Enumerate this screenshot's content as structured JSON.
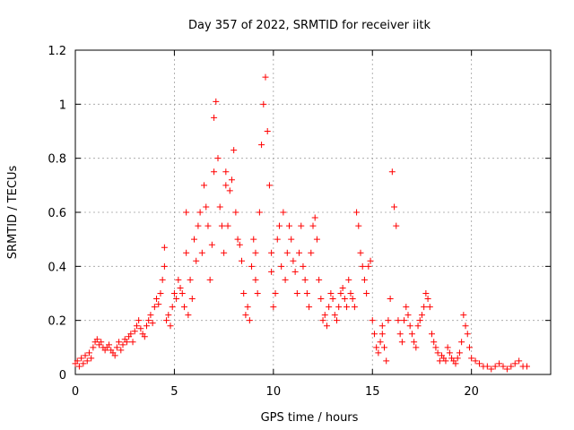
{
  "chart_data": {
    "type": "scatter",
    "title": "Day 357 of 2022, SRMTID for receiver iitk",
    "xlabel": "GPS time / hours",
    "ylabel": "SRMTID / TECUs",
    "xlim": [
      0,
      24
    ],
    "ylim": [
      0,
      1.2
    ],
    "xticks": [
      0,
      5,
      10,
      15,
      20
    ],
    "xtick_labels": [
      "0",
      "5",
      "10",
      "15",
      "20"
    ],
    "yticks": [
      0,
      0.2,
      0.4,
      0.6,
      0.8,
      1.0,
      1.2
    ],
    "ytick_labels": [
      "0",
      "0.2",
      "0.4",
      "0.6",
      "0.8",
      "1",
      "1.2"
    ],
    "grid": true,
    "marker": "plus",
    "color": "#ff0000",
    "series": [
      {
        "name": "SRMTID",
        "x": [
          0.0,
          0.1,
          0.2,
          0.3,
          0.4,
          0.5,
          0.6,
          0.7,
          0.8,
          0.9,
          1.0,
          1.1,
          1.2,
          1.3,
          1.4,
          1.5,
          1.6,
          1.7,
          1.8,
          1.9,
          2.0,
          2.1,
          2.2,
          2.3,
          2.4,
          2.5,
          2.6,
          2.7,
          2.8,
          2.9,
          3.0,
          3.1,
          3.2,
          3.3,
          3.4,
          3.5,
          3.6,
          3.7,
          3.8,
          3.9,
          4.0,
          4.1,
          4.2,
          4.3,
          4.4,
          4.5,
          4.5,
          4.6,
          4.7,
          4.8,
          4.9,
          5.0,
          5.1,
          5.2,
          5.3,
          5.4,
          5.5,
          5.6,
          5.6,
          5.7,
          5.8,
          5.9,
          6.0,
          6.1,
          6.2,
          6.3,
          6.4,
          6.5,
          6.6,
          6.7,
          6.8,
          6.9,
          7.0,
          7.0,
          7.1,
          7.2,
          7.3,
          7.4,
          7.5,
          7.6,
          7.6,
          7.7,
          7.8,
          7.9,
          8.0,
          8.1,
          8.2,
          8.3,
          8.4,
          8.5,
          8.6,
          8.7,
          8.8,
          8.9,
          9.0,
          9.1,
          9.1,
          9.2,
          9.3,
          9.4,
          9.5,
          9.6,
          9.7,
          9.8,
          9.9,
          9.9,
          10.0,
          10.1,
          10.2,
          10.3,
          10.4,
          10.5,
          10.6,
          10.7,
          10.8,
          10.9,
          11.0,
          11.1,
          11.2,
          11.3,
          11.4,
          11.5,
          11.6,
          11.7,
          11.8,
          11.9,
          12.0,
          12.1,
          12.2,
          12.3,
          12.4,
          12.5,
          12.6,
          12.7,
          12.8,
          12.9,
          13.0,
          13.1,
          13.2,
          13.3,
          13.4,
          13.5,
          13.6,
          13.7,
          13.8,
          13.9,
          14.0,
          14.1,
          14.2,
          14.3,
          14.4,
          14.5,
          14.6,
          14.7,
          14.8,
          14.9,
          15.0,
          15.1,
          15.2,
          15.3,
          15.4,
          15.5,
          15.5,
          15.6,
          15.7,
          15.8,
          15.9,
          16.0,
          16.1,
          16.2,
          16.3,
          16.4,
          16.5,
          16.6,
          16.7,
          16.8,
          16.9,
          17.0,
          17.1,
          17.2,
          17.3,
          17.4,
          17.5,
          17.6,
          17.7,
          17.8,
          17.9,
          18.0,
          18.1,
          18.2,
          18.3,
          18.4,
          18.5,
          18.6,
          18.7,
          18.8,
          18.9,
          19.0,
          19.1,
          19.2,
          19.3,
          19.4,
          19.5,
          19.6,
          19.7,
          19.8,
          19.9,
          20.0,
          20.2,
          20.4,
          20.6,
          20.8,
          21.0,
          21.2,
          21.4,
          21.6,
          21.8,
          22.0,
          22.2,
          22.4,
          22.6,
          22.8
        ],
        "y": [
          0.04,
          0.05,
          0.03,
          0.06,
          0.04,
          0.07,
          0.05,
          0.08,
          0.06,
          0.1,
          0.12,
          0.13,
          0.11,
          0.12,
          0.1,
          0.09,
          0.1,
          0.11,
          0.09,
          0.08,
          0.07,
          0.1,
          0.12,
          0.09,
          0.11,
          0.13,
          0.12,
          0.14,
          0.15,
          0.12,
          0.16,
          0.18,
          0.2,
          0.17,
          0.15,
          0.14,
          0.18,
          0.2,
          0.22,
          0.19,
          0.25,
          0.28,
          0.26,
          0.3,
          0.35,
          0.4,
          0.47,
          0.2,
          0.22,
          0.18,
          0.25,
          0.3,
          0.28,
          0.35,
          0.32,
          0.3,
          0.25,
          0.45,
          0.6,
          0.22,
          0.35,
          0.28,
          0.5,
          0.42,
          0.55,
          0.6,
          0.45,
          0.7,
          0.62,
          0.55,
          0.35,
          0.48,
          0.75,
          0.95,
          1.01,
          0.8,
          0.62,
          0.55,
          0.45,
          0.7,
          0.75,
          0.55,
          0.68,
          0.72,
          0.83,
          0.6,
          0.5,
          0.48,
          0.42,
          0.3,
          0.22,
          0.25,
          0.2,
          0.4,
          0.5,
          0.35,
          0.45,
          0.3,
          0.6,
          0.85,
          1.0,
          1.1,
          0.9,
          0.7,
          0.45,
          0.38,
          0.25,
          0.3,
          0.5,
          0.55,
          0.4,
          0.6,
          0.35,
          0.45,
          0.55,
          0.5,
          0.42,
          0.38,
          0.3,
          0.45,
          0.55,
          0.4,
          0.35,
          0.3,
          0.25,
          0.45,
          0.55,
          0.58,
          0.5,
          0.35,
          0.28,
          0.2,
          0.22,
          0.18,
          0.25,
          0.3,
          0.28,
          0.22,
          0.2,
          0.25,
          0.3,
          0.32,
          0.28,
          0.25,
          0.35,
          0.3,
          0.28,
          0.25,
          0.6,
          0.55,
          0.45,
          0.4,
          0.35,
          0.3,
          0.4,
          0.42,
          0.2,
          0.15,
          0.1,
          0.08,
          0.12,
          0.15,
          0.18,
          0.1,
          0.05,
          0.2,
          0.28,
          0.75,
          0.62,
          0.55,
          0.2,
          0.15,
          0.12,
          0.2,
          0.25,
          0.22,
          0.18,
          0.15,
          0.12,
          0.1,
          0.18,
          0.2,
          0.22,
          0.25,
          0.3,
          0.28,
          0.25,
          0.15,
          0.12,
          0.1,
          0.08,
          0.05,
          0.07,
          0.06,
          0.05,
          0.1,
          0.08,
          0.06,
          0.05,
          0.04,
          0.06,
          0.08,
          0.12,
          0.22,
          0.18,
          0.15,
          0.1,
          0.06,
          0.05,
          0.04,
          0.03,
          0.03,
          0.02,
          0.03,
          0.04,
          0.03,
          0.02,
          0.03,
          0.04,
          0.05,
          0.03,
          0.03
        ]
      }
    ]
  }
}
